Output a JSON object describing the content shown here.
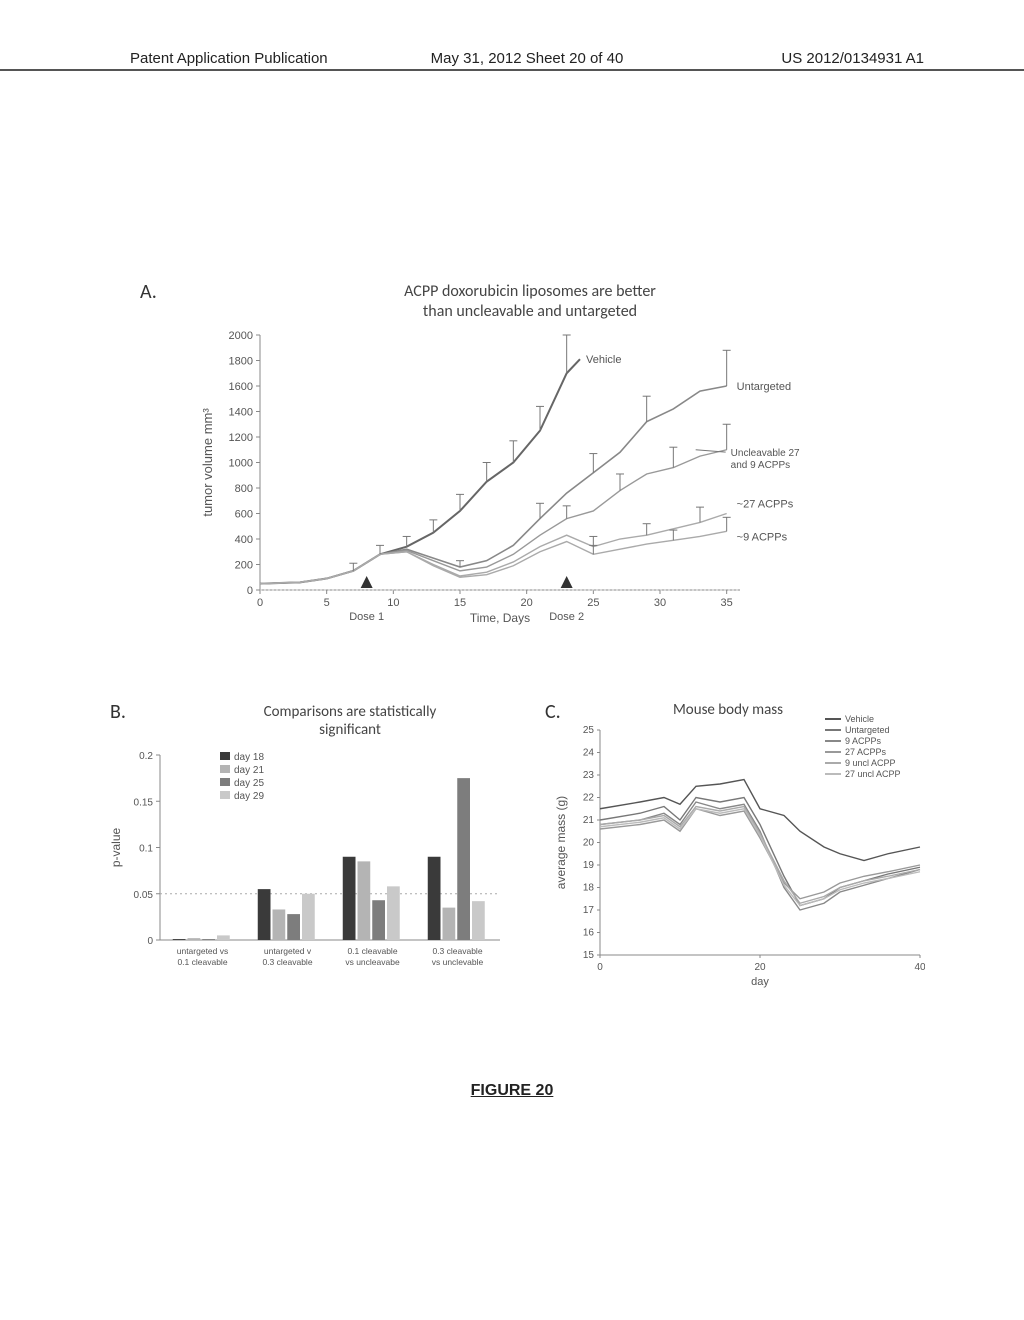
{
  "header": {
    "pubtype": "Patent Application Publication",
    "date_sheet": "May 31, 2012  Sheet 20 of 40",
    "pubno": "US 2012/0134931 A1"
  },
  "figure_label": "FIGURE 20",
  "panelA": {
    "label": "A.",
    "title_line1": "ACPP doxorubicin liposomes are better",
    "title_line2": "than uncleavable and untargeted",
    "ylabel": "tumor volume mm³",
    "xlabel": "Time, Days",
    "dose1_label": "Dose 1",
    "dose2_label": "Dose 2",
    "yticks": [
      0,
      200,
      400,
      600,
      800,
      1000,
      1200,
      1400,
      1600,
      1800,
      2000
    ],
    "xticks": [
      0,
      5,
      10,
      15,
      20,
      25,
      30,
      35
    ],
    "series_labels": {
      "vehicle": "Vehicle",
      "untargeted": "Untargeted",
      "uncleavable": "Uncleavable 27 and 9 ACPPs",
      "acpp27": "~27 ACPPs",
      "acpp9": "~9 ACPPs"
    },
    "plot_extent": {
      "xmin": 0,
      "xmax": 36,
      "ymin": 0,
      "ymax": 2000
    },
    "series": {
      "vehicle": [
        [
          0,
          50
        ],
        [
          3,
          60
        ],
        [
          5,
          90
        ],
        [
          7,
          150
        ],
        [
          9,
          280
        ],
        [
          11,
          340
        ],
        [
          13,
          450
        ],
        [
          15,
          620
        ],
        [
          17,
          850
        ],
        [
          19,
          1000
        ],
        [
          21,
          1250
        ],
        [
          23,
          1700
        ],
        [
          24,
          1810
        ]
      ],
      "untargeted": [
        [
          0,
          50
        ],
        [
          3,
          60
        ],
        [
          5,
          90
        ],
        [
          7,
          150
        ],
        [
          9,
          280
        ],
        [
          11,
          320
        ],
        [
          13,
          250
        ],
        [
          15,
          180
        ],
        [
          17,
          230
        ],
        [
          19,
          350
        ],
        [
          21,
          560
        ],
        [
          23,
          760
        ],
        [
          25,
          920
        ],
        [
          27,
          1080
        ],
        [
          29,
          1320
        ],
        [
          31,
          1420
        ],
        [
          33,
          1560
        ],
        [
          35,
          1600
        ]
      ],
      "uncleavable": [
        [
          0,
          50
        ],
        [
          3,
          60
        ],
        [
          5,
          90
        ],
        [
          7,
          150
        ],
        [
          9,
          280
        ],
        [
          11,
          310
        ],
        [
          13,
          230
        ],
        [
          15,
          150
        ],
        [
          17,
          180
        ],
        [
          19,
          280
        ],
        [
          21,
          430
        ],
        [
          23,
          560
        ],
        [
          25,
          620
        ],
        [
          27,
          780
        ],
        [
          29,
          910
        ],
        [
          31,
          960
        ],
        [
          33,
          1050
        ],
        [
          35,
          1100
        ]
      ],
      "acpp27": [
        [
          0,
          50
        ],
        [
          3,
          60
        ],
        [
          5,
          90
        ],
        [
          7,
          150
        ],
        [
          9,
          280
        ],
        [
          11,
          300
        ],
        [
          13,
          200
        ],
        [
          15,
          110
        ],
        [
          17,
          140
        ],
        [
          19,
          220
        ],
        [
          21,
          340
        ],
        [
          23,
          430
        ],
        [
          25,
          340
        ],
        [
          27,
          400
        ],
        [
          29,
          430
        ],
        [
          31,
          480
        ],
        [
          33,
          530
        ],
        [
          35,
          600
        ]
      ],
      "acpp9": [
        [
          0,
          50
        ],
        [
          3,
          60
        ],
        [
          5,
          90
        ],
        [
          7,
          150
        ],
        [
          9,
          280
        ],
        [
          11,
          300
        ],
        [
          13,
          190
        ],
        [
          15,
          100
        ],
        [
          17,
          120
        ],
        [
          19,
          190
        ],
        [
          21,
          300
        ],
        [
          23,
          380
        ],
        [
          25,
          280
        ],
        [
          27,
          320
        ],
        [
          29,
          360
        ],
        [
          31,
          390
        ],
        [
          33,
          420
        ],
        [
          35,
          460
        ]
      ]
    },
    "errors": {
      "vehicle": [
        [
          7,
          60
        ],
        [
          9,
          70
        ],
        [
          11,
          80
        ],
        [
          13,
          100
        ],
        [
          15,
          130
        ],
        [
          17,
          150
        ],
        [
          19,
          170
        ],
        [
          21,
          190
        ],
        [
          23,
          300
        ]
      ],
      "untargeted": [
        [
          15,
          50
        ],
        [
          21,
          120
        ],
        [
          25,
          150
        ],
        [
          29,
          200
        ],
        [
          35,
          280
        ]
      ],
      "uncleavable": [
        [
          23,
          100
        ],
        [
          27,
          130
        ],
        [
          31,
          160
        ],
        [
          35,
          200
        ]
      ],
      "acpp27": [
        [
          25,
          80
        ],
        [
          29,
          90
        ],
        [
          33,
          120
        ]
      ],
      "acpp9": [
        [
          25,
          70
        ],
        [
          31,
          80
        ],
        [
          35,
          110
        ]
      ]
    },
    "dose_markers_x": [
      8,
      23
    ],
    "colors": {
      "line": "#777777",
      "bg": "#ffffff",
      "axis": "#888888"
    }
  },
  "panelB": {
    "label": "B.",
    "title_line1": "Comparisons are statistically",
    "title_line2": "significant",
    "ylabel": "p-value",
    "yticks": [
      0,
      0.05,
      0.1,
      0.15,
      0.2
    ],
    "xgroups": [
      "untargeted vs 0.1 cleavable",
      "untargeted v 0.3 cleavable",
      "0.1 cleavable vs uncleavabe",
      "0.3 cleavable vs unclevable"
    ],
    "legend": [
      "day 18",
      "day 21",
      "day 25",
      "day 29"
    ],
    "legend_colors": [
      "#3a3a3a",
      "#b4b4b4",
      "#7d7d7d",
      "#c9c9c9"
    ],
    "plot_extent": {
      "ymin": 0,
      "ymax": 0.2
    },
    "data": [
      [
        0.001,
        0.002,
        0.001,
        0.005
      ],
      [
        0.055,
        0.033,
        0.028,
        0.05
      ],
      [
        0.09,
        0.085,
        0.043,
        0.058
      ],
      [
        0.09,
        0.035,
        0.175,
        0.042
      ]
    ],
    "ref_line": 0.05,
    "colors": {
      "axis": "#888888",
      "ref": "#888888"
    }
  },
  "panelC": {
    "label": "C.",
    "title": "Mouse body mass",
    "ylabel": "average mass (g)",
    "xlabel": "day",
    "yticks": [
      15,
      16,
      17,
      18,
      19,
      20,
      21,
      22,
      23,
      24,
      25
    ],
    "xticks": [
      0,
      20,
      40
    ],
    "legend": [
      "Vehicle",
      "Untargeted",
      "9 ACPPs",
      "27 ACPPs",
      "9 uncl ACPP",
      "27 uncl ACPP"
    ],
    "plot_extent": {
      "xmin": 0,
      "xmax": 40,
      "ymin": 15,
      "ymax": 25
    },
    "series": {
      "vehicle": [
        [
          0,
          21.5
        ],
        [
          5,
          21.8
        ],
        [
          8,
          22.0
        ],
        [
          10,
          21.7
        ],
        [
          12,
          22.5
        ],
        [
          15,
          22.6
        ],
        [
          18,
          22.8
        ],
        [
          20,
          21.5
        ],
        [
          23,
          21.2
        ],
        [
          25,
          20.5
        ],
        [
          28,
          19.8
        ],
        [
          30,
          19.5
        ],
        [
          33,
          19.2
        ],
        [
          36,
          19.5
        ],
        [
          40,
          19.8
        ]
      ],
      "untargeted": [
        [
          0,
          21.0
        ],
        [
          5,
          21.3
        ],
        [
          8,
          21.6
        ],
        [
          10,
          21.0
        ],
        [
          12,
          22.0
        ],
        [
          15,
          21.8
        ],
        [
          18,
          22.0
        ],
        [
          20,
          20.8
        ],
        [
          23,
          18.5
        ],
        [
          25,
          17.2
        ],
        [
          28,
          17.5
        ],
        [
          30,
          18.0
        ],
        [
          33,
          18.3
        ],
        [
          36,
          18.6
        ],
        [
          40,
          18.9
        ]
      ],
      "acpp9": [
        [
          0,
          20.8
        ],
        [
          5,
          21.0
        ],
        [
          8,
          21.3
        ],
        [
          10,
          20.8
        ],
        [
          12,
          21.8
        ],
        [
          15,
          21.5
        ],
        [
          18,
          21.7
        ],
        [
          20,
          20.5
        ],
        [
          23,
          18.0
        ],
        [
          25,
          17.0
        ],
        [
          28,
          17.3
        ],
        [
          30,
          17.8
        ],
        [
          33,
          18.1
        ],
        [
          36,
          18.4
        ],
        [
          40,
          18.8
        ]
      ],
      "acpp27": [
        [
          0,
          20.6
        ],
        [
          5,
          20.8
        ],
        [
          8,
          21.0
        ],
        [
          10,
          20.5
        ],
        [
          12,
          21.5
        ],
        [
          15,
          21.2
        ],
        [
          18,
          21.4
        ],
        [
          20,
          20.2
        ],
        [
          23,
          18.2
        ],
        [
          25,
          17.5
        ],
        [
          28,
          17.8
        ],
        [
          30,
          18.2
        ],
        [
          33,
          18.5
        ],
        [
          36,
          18.7
        ],
        [
          40,
          19.0
        ]
      ],
      "uncl9": [
        [
          0,
          20.8
        ],
        [
          5,
          21.0
        ],
        [
          8,
          21.2
        ],
        [
          10,
          20.7
        ],
        [
          12,
          21.6
        ],
        [
          15,
          21.4
        ],
        [
          18,
          21.6
        ],
        [
          20,
          20.4
        ],
        [
          23,
          18.3
        ],
        [
          25,
          17.3
        ],
        [
          28,
          17.6
        ],
        [
          30,
          18.0
        ],
        [
          33,
          18.3
        ],
        [
          36,
          18.5
        ],
        [
          40,
          18.8
        ]
      ],
      "uncl27": [
        [
          0,
          20.7
        ],
        [
          5,
          20.9
        ],
        [
          8,
          21.1
        ],
        [
          10,
          20.6
        ],
        [
          12,
          21.5
        ],
        [
          15,
          21.3
        ],
        [
          18,
          21.5
        ],
        [
          20,
          20.3
        ],
        [
          23,
          18.1
        ],
        [
          25,
          17.2
        ],
        [
          28,
          17.5
        ],
        [
          30,
          17.9
        ],
        [
          33,
          18.2
        ],
        [
          36,
          18.4
        ],
        [
          40,
          18.7
        ]
      ]
    },
    "colors": {
      "line": "#777777",
      "axis": "#888888"
    }
  }
}
